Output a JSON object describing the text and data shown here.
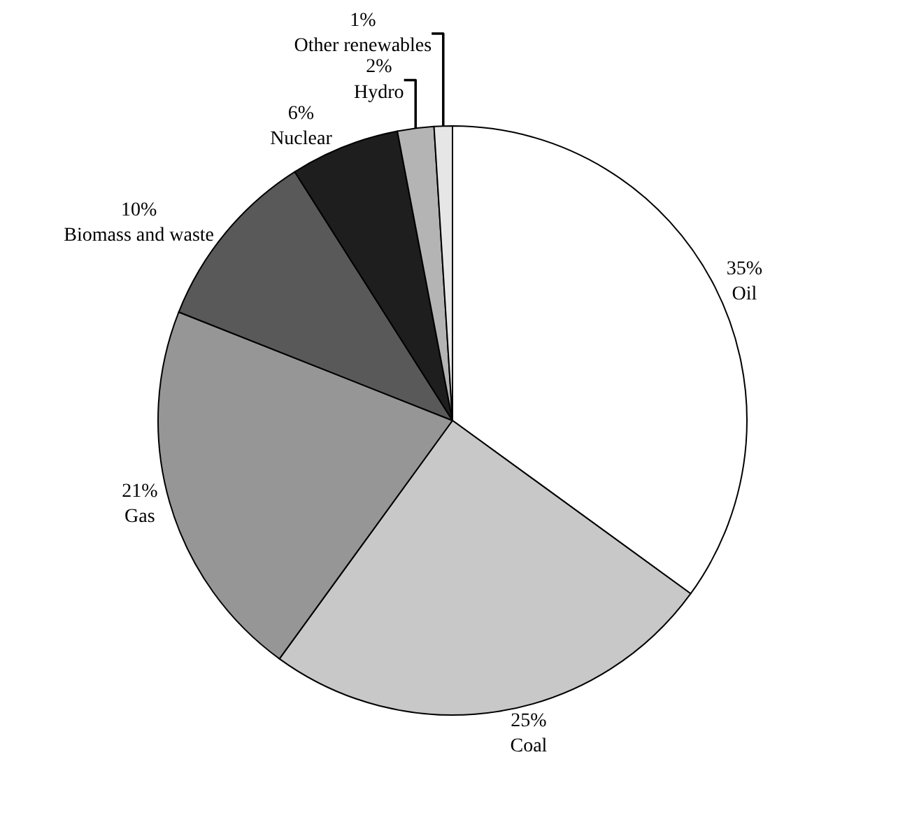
{
  "chart_data": {
    "type": "pie",
    "categories": [
      "Oil",
      "Coal",
      "Gas",
      "Biomass and waste",
      "Nuclear",
      "Hydro",
      "Other renewables"
    ],
    "values": [
      35,
      25,
      21,
      10,
      6,
      2,
      1
    ],
    "value_labels": [
      "35%",
      "25%",
      "21%",
      "10%",
      "6%",
      "2%",
      "1%"
    ],
    "colors": [
      "#ffffff",
      "#c8c8c8",
      "#969696",
      "#595959",
      "#1e1e1e",
      "#b4b4b4",
      "#e6e6e6"
    ],
    "legend": false
  }
}
